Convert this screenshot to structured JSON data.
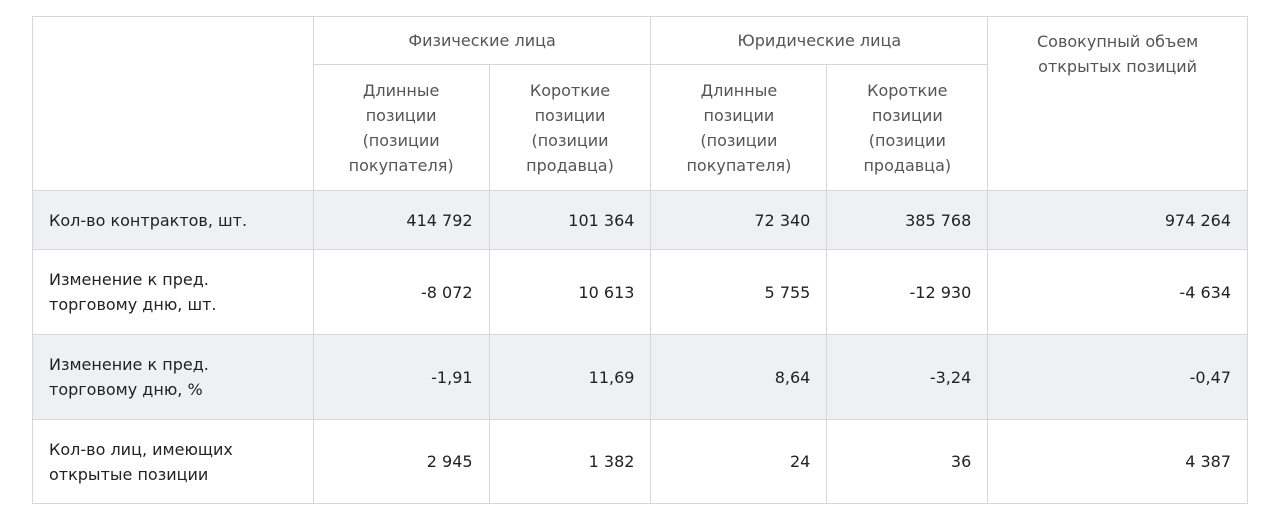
{
  "table": {
    "group_headers": [
      "Физические лица",
      "Юридические лица",
      "Совокупный объем открытых позиций"
    ],
    "sub_headers": [
      "Длинные позиции (позиции покупателя)",
      "Короткие позиции (позиции продавца)",
      "Длинные позиции (позиции покупателя)",
      "Короткие позиции (позиции продавца)"
    ],
    "rows": [
      [
        "Кол-во контрактов, шт.",
        "414 792",
        "101 364",
        "72 340",
        "385 768",
        "974 264"
      ],
      [
        "Изменение к пред. торговому дню, шт.",
        "-8 072",
        "10 613",
        "5 755",
        "-12 930",
        "-4 634"
      ],
      [
        "Изменение к пред. торговому дню, %",
        "-1,91",
        "11,69",
        "8,64",
        "-3,24",
        "-0,47"
      ],
      [
        "Кол-во лиц, имеющих открытые позиции",
        "2 945",
        "1 382",
        "24",
        "36",
        "4 387"
      ]
    ]
  }
}
